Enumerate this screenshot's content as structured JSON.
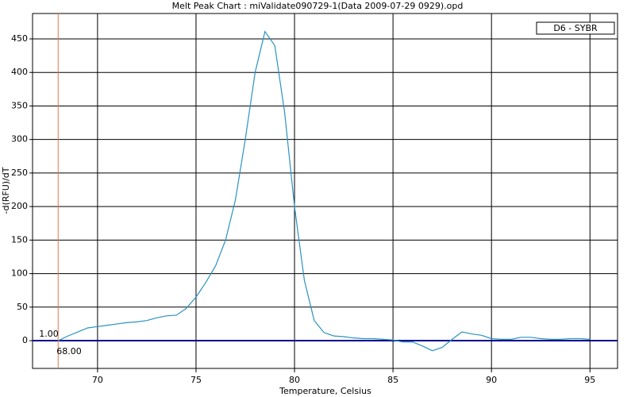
{
  "chart_data": {
    "type": "line",
    "title": "Melt Peak Chart : miValidate090729-1(Data 2009-07-29 0929).opd",
    "x_label": "Temperature, Celsius",
    "y_label": "-d(RFU)/dT",
    "x": [
      68.0,
      68.5,
      69.0,
      69.5,
      70.0,
      70.5,
      71.0,
      71.5,
      72.0,
      72.5,
      73.0,
      73.5,
      74.0,
      74.5,
      75.0,
      75.5,
      76.0,
      76.5,
      77.0,
      77.5,
      78.0,
      78.5,
      79.0,
      79.5,
      80.0,
      80.5,
      81.0,
      81.5,
      82.0,
      82.5,
      83.0,
      83.5,
      84.0,
      84.5,
      85.0,
      85.5,
      86.0,
      86.5,
      87.0,
      87.5,
      88.0,
      88.5,
      89.0,
      89.5,
      90.0,
      90.5,
      91.0,
      91.5,
      92.0,
      92.5,
      93.0,
      93.5,
      94.0,
      94.5,
      95.0
    ],
    "series": [
      {
        "name": "D6 - SYBR",
        "color": "#2a93c0",
        "values": [
          0,
          7,
          13,
          19,
          21,
          23,
          25,
          27,
          28,
          30,
          34,
          37,
          38,
          48,
          65,
          87,
          112,
          150,
          210,
          300,
          400,
          461,
          440,
          340,
          200,
          90,
          30,
          12,
          7,
          6,
          4,
          3,
          3,
          2,
          1,
          -2,
          -2,
          -8,
          -15,
          -10,
          2,
          13,
          10,
          8,
          3,
          2,
          2,
          5,
          5,
          3,
          2,
          2,
          3,
          3,
          2
        ]
      }
    ],
    "xlim": [
      66.7,
      96.4
    ],
    "xticks": [
      70,
      75,
      80,
      85,
      90,
      95
    ],
    "ylim": [
      -41.4,
      487.9
    ],
    "yticks": [
      0,
      50,
      100,
      150,
      200,
      250,
      300,
      350,
      400,
      450
    ],
    "grid": true,
    "hlines": [
      {
        "y": 0,
        "color": "#00008b"
      }
    ],
    "vlines": [
      {
        "x": 68,
        "color": "#e0784a"
      }
    ],
    "annotations": [
      "1.00",
      "68.00"
    ],
    "legend": "upper right"
  }
}
